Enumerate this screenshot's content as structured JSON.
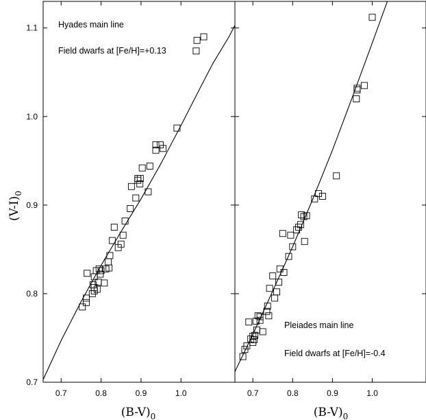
{
  "chart_data": {
    "type": "scatter",
    "ylabel": "(V-I)",
    "ylabel_sub": "0",
    "xlabel": "(B-V)",
    "xlabel_sub": "0",
    "ylim": [
      0.7,
      1.13
    ],
    "yticks": [
      0.7,
      0.8,
      0.9,
      1.0,
      1.1
    ],
    "yticklabels": [
      "0.7",
      "0.8",
      "0.9",
      "1.0",
      "1.1"
    ],
    "grid": false,
    "panels": [
      {
        "xlim": [
          0.655,
          1.135
        ],
        "xticks": [
          0.7,
          0.8,
          0.9,
          1.0
        ],
        "xticklabels": [
          "0.7",
          "0.8",
          "0.9",
          "1.0"
        ],
        "annotations": [
          "Hyades main line",
          "Field dwarfs at [Fe/H]=+0.13"
        ],
        "annotation_position": "top-left",
        "series": [
          {
            "type": "line",
            "x": [
              0.655,
              0.7,
              0.75,
              0.8,
              0.85,
              0.9,
              0.95,
              1.0,
              1.05,
              1.08,
              1.12,
              1.135
            ],
            "y": [
              0.703,
              0.747,
              0.791,
              0.832,
              0.87,
              0.907,
              0.947,
              0.99,
              1.034,
              1.06,
              1.09,
              1.103
            ]
          },
          {
            "type": "scatter",
            "marker": "open-square",
            "x": [
              0.753,
              0.763,
              0.763,
              0.778,
              0.783,
              0.783,
              0.79,
              0.793,
              0.798,
              0.8,
              0.808,
              0.812,
              0.82,
              0.818,
              0.822,
              0.828,
              0.833,
              0.843,
              0.85,
              0.855,
              0.86,
              0.873,
              0.876,
              0.887,
              0.892,
              0.892,
              0.897,
              0.898,
              0.903,
              0.918,
              0.922,
              0.937,
              0.937,
              0.948,
              0.955,
              0.99,
              1.038,
              1.04,
              1.057,
              0.765,
              0.788,
              0.795,
              0.783,
              0.78
            ],
            "y": [
              0.785,
              0.79,
              0.795,
              0.8,
              0.803,
              0.807,
              0.805,
              0.813,
              0.822,
              0.826,
              0.812,
              0.828,
              0.829,
              0.836,
              0.843,
              0.86,
              0.875,
              0.852,
              0.856,
              0.866,
              0.882,
              0.896,
              0.921,
              0.908,
              0.928,
              0.93,
              0.924,
              0.93,
              0.942,
              0.915,
              0.944,
              0.962,
              0.968,
              0.968,
              0.964,
              0.987,
              1.074,
              1.086,
              1.09,
              0.823,
              0.826,
              0.828,
              0.819,
              0.81
            ]
          }
        ]
      },
      {
        "xlim": [
          0.655,
          1.135
        ],
        "xticks": [
          0.7,
          0.8,
          0.9,
          1.0
        ],
        "xticklabels": [
          "0.7",
          "0.8",
          "0.9",
          "1.0"
        ],
        "annotations": [
          "Pleiades main line",
          "Field dwarfs at [Fe/H]=-0.4"
        ],
        "annotation_position": "bottom-right",
        "series": [
          {
            "type": "line",
            "x": [
              0.655,
              0.7,
              0.75,
              0.8,
              0.85,
              0.9,
              0.95,
              1.0,
              1.05,
              1.08
            ],
            "y": [
              0.712,
              0.754,
              0.803,
              0.853,
              0.906,
              0.962,
              1.022,
              1.083,
              1.145,
              1.183
            ]
          },
          {
            "type": "scatter",
            "marker": "open-square",
            "x": [
              0.675,
              0.68,
              0.685,
              0.69,
              0.695,
              0.7,
              0.7,
              0.703,
              0.705,
              0.708,
              0.71,
              0.713,
              0.718,
              0.718,
              0.725,
              0.735,
              0.737,
              0.74,
              0.742,
              0.75,
              0.755,
              0.76,
              0.765,
              0.768,
              0.775,
              0.778,
              0.79,
              0.795,
              0.8,
              0.81,
              0.815,
              0.82,
              0.822,
              0.828,
              0.83,
              0.835,
              0.855,
              0.865,
              0.875,
              0.91,
              0.96,
              0.962,
              0.962,
              0.98,
              1.0
            ],
            "y": [
              0.729,
              0.737,
              0.741,
              0.768,
              0.749,
              0.752,
              0.745,
              0.748,
              0.753,
              0.769,
              0.759,
              0.775,
              0.77,
              0.774,
              0.757,
              0.78,
              0.786,
              0.775,
              0.806,
              0.82,
              0.795,
              0.802,
              0.813,
              0.828,
              0.868,
              0.824,
              0.842,
              0.866,
              0.853,
              0.872,
              0.875,
              0.878,
              0.889,
              0.887,
              0.859,
              0.888,
              0.907,
              0.913,
              0.91,
              0.933,
              1.02,
              1.032,
              1.03,
              1.035,
              1.112
            ]
          }
        ]
      }
    ]
  }
}
